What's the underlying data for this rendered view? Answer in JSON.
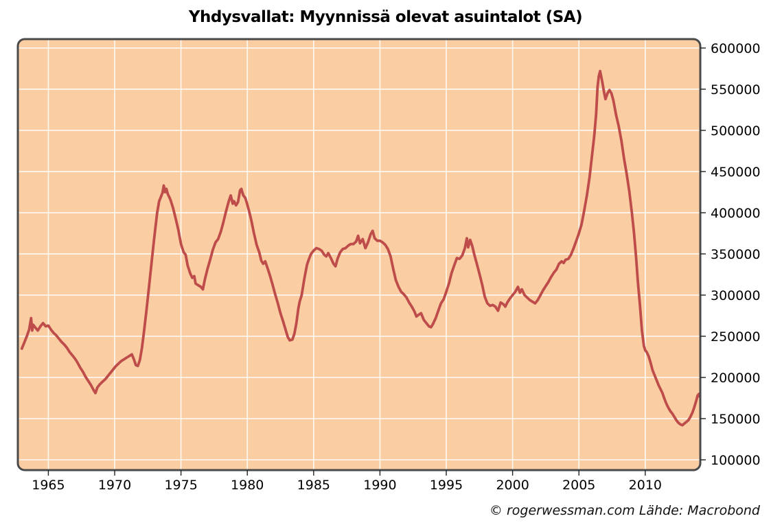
{
  "title": "Yhdysvallat: Myynnissä olevat asuintalot (SA)",
  "attribution": "© rogerwessman.com Lähde: Macrobond",
  "colors": {
    "plot_background": "#FACDA3",
    "line": "#BE4C4A",
    "gridline": "#FDFAF4",
    "frame": "#4A4A4A",
    "tick": "#222222",
    "text": "#000000"
  },
  "chart_data": {
    "type": "line",
    "title": "Yhdysvallat: Myynnissä olevat asuintalot (SA)",
    "xlabel": "",
    "ylabel": "",
    "x_range": [
      1962.7,
      2014.15
    ],
    "y_range": [
      87500,
      610800
    ],
    "grid": true,
    "legend_position": "none",
    "x_ticks": [
      1965,
      1970,
      1975,
      1980,
      1985,
      1990,
      1995,
      2000,
      2005,
      2010
    ],
    "y_ticks": [
      100000,
      150000,
      200000,
      250000,
      300000,
      350000,
      400000,
      450000,
      500000,
      550000,
      600000
    ],
    "series": [
      {
        "name": "Myynnissä olevat asuintalot (SA)",
        "points": [
          [
            1963.0,
            235000
          ],
          [
            1963.2,
            243000
          ],
          [
            1963.4,
            251000
          ],
          [
            1963.55,
            258000
          ],
          [
            1963.7,
            272000
          ],
          [
            1963.78,
            257000
          ],
          [
            1963.85,
            264000
          ],
          [
            1964.0,
            261000
          ],
          [
            1964.2,
            257000
          ],
          [
            1964.4,
            262000
          ],
          [
            1964.6,
            266000
          ],
          [
            1964.8,
            262000
          ],
          [
            1965.0,
            263000
          ],
          [
            1965.2,
            258000
          ],
          [
            1965.4,
            254000
          ],
          [
            1965.6,
            251000
          ],
          [
            1965.8,
            247000
          ],
          [
            1966.0,
            243000
          ],
          [
            1966.2,
            240000
          ],
          [
            1966.4,
            236000
          ],
          [
            1966.6,
            231000
          ],
          [
            1966.8,
            227000
          ],
          [
            1967.0,
            223000
          ],
          [
            1967.2,
            218000
          ],
          [
            1967.4,
            212000
          ],
          [
            1967.6,
            207000
          ],
          [
            1967.8,
            201000
          ],
          [
            1968.0,
            196000
          ],
          [
            1968.2,
            191000
          ],
          [
            1968.4,
            185000
          ],
          [
            1968.55,
            181000
          ],
          [
            1968.7,
            188000
          ],
          [
            1968.9,
            192000
          ],
          [
            1969.1,
            195000
          ],
          [
            1969.3,
            198000
          ],
          [
            1969.5,
            202000
          ],
          [
            1969.7,
            206000
          ],
          [
            1969.9,
            210000
          ],
          [
            1970.1,
            214000
          ],
          [
            1970.3,
            217000
          ],
          [
            1970.5,
            220000
          ],
          [
            1970.7,
            222000
          ],
          [
            1970.9,
            224000
          ],
          [
            1971.1,
            226000
          ],
          [
            1971.3,
            228000
          ],
          [
            1971.45,
            222000
          ],
          [
            1971.6,
            215000
          ],
          [
            1971.75,
            214000
          ],
          [
            1971.9,
            221000
          ],
          [
            1972.05,
            235000
          ],
          [
            1972.2,
            254000
          ],
          [
            1972.4,
            282000
          ],
          [
            1972.6,
            312000
          ],
          [
            1972.8,
            342000
          ],
          [
            1973.0,
            372000
          ],
          [
            1973.2,
            400000
          ],
          [
            1973.35,
            414000
          ],
          [
            1973.5,
            420000
          ],
          [
            1973.6,
            424000
          ],
          [
            1973.7,
            433000
          ],
          [
            1973.8,
            425000
          ],
          [
            1973.9,
            429000
          ],
          [
            1974.0,
            423000
          ],
          [
            1974.2,
            416000
          ],
          [
            1974.4,
            406000
          ],
          [
            1974.6,
            393000
          ],
          [
            1974.8,
            379000
          ],
          [
            1975.0,
            362000
          ],
          [
            1975.2,
            352000
          ],
          [
            1975.35,
            349000
          ],
          [
            1975.5,
            336000
          ],
          [
            1975.7,
            326000
          ],
          [
            1975.85,
            321000
          ],
          [
            1976.0,
            323000
          ],
          [
            1976.1,
            314000
          ],
          [
            1976.3,
            312000
          ],
          [
            1976.5,
            310000
          ],
          [
            1976.65,
            307000
          ],
          [
            1976.8,
            319000
          ],
          [
            1977.0,
            332000
          ],
          [
            1977.2,
            343000
          ],
          [
            1977.4,
            355000
          ],
          [
            1977.6,
            364000
          ],
          [
            1977.8,
            368000
          ],
          [
            1978.0,
            377000
          ],
          [
            1978.2,
            389000
          ],
          [
            1978.4,
            402000
          ],
          [
            1978.6,
            414000
          ],
          [
            1978.75,
            421000
          ],
          [
            1978.9,
            411000
          ],
          [
            1979.0,
            414000
          ],
          [
            1979.15,
            409000
          ],
          [
            1979.3,
            413000
          ],
          [
            1979.45,
            427000
          ],
          [
            1979.55,
            429000
          ],
          [
            1979.7,
            421000
          ],
          [
            1979.85,
            418000
          ],
          [
            1980.0,
            410000
          ],
          [
            1980.15,
            401000
          ],
          [
            1980.3,
            391000
          ],
          [
            1980.5,
            375000
          ],
          [
            1980.7,
            361000
          ],
          [
            1980.9,
            352000
          ],
          [
            1981.05,
            342000
          ],
          [
            1981.2,
            338000
          ],
          [
            1981.35,
            341000
          ],
          [
            1981.5,
            334000
          ],
          [
            1981.7,
            324000
          ],
          [
            1981.9,
            313000
          ],
          [
            1982.1,
            301000
          ],
          [
            1982.3,
            290000
          ],
          [
            1982.5,
            278000
          ],
          [
            1982.7,
            268000
          ],
          [
            1982.9,
            257000
          ],
          [
            1983.05,
            249000
          ],
          [
            1983.2,
            245000
          ],
          [
            1983.4,
            246000
          ],
          [
            1983.55,
            253000
          ],
          [
            1983.7,
            266000
          ],
          [
            1983.85,
            284000
          ],
          [
            1983.95,
            292000
          ],
          [
            1984.1,
            300000
          ],
          [
            1984.3,
            320000
          ],
          [
            1984.5,
            337000
          ],
          [
            1984.65,
            344000
          ],
          [
            1984.8,
            350000
          ],
          [
            1985.0,
            354000
          ],
          [
            1985.2,
            357000
          ],
          [
            1985.4,
            356000
          ],
          [
            1985.6,
            354000
          ],
          [
            1985.8,
            349000
          ],
          [
            1985.95,
            347000
          ],
          [
            1986.1,
            351000
          ],
          [
            1986.3,
            345000
          ],
          [
            1986.5,
            338000
          ],
          [
            1986.65,
            335000
          ],
          [
            1986.8,
            344000
          ],
          [
            1987.0,
            352000
          ],
          [
            1987.2,
            356000
          ],
          [
            1987.4,
            357000
          ],
          [
            1987.6,
            360000
          ],
          [
            1987.8,
            362000
          ],
          [
            1988.0,
            362000
          ],
          [
            1988.2,
            365000
          ],
          [
            1988.35,
            372000
          ],
          [
            1988.5,
            363000
          ],
          [
            1988.7,
            368000
          ],
          [
            1988.9,
            357000
          ],
          [
            1989.1,
            364000
          ],
          [
            1989.3,
            374000
          ],
          [
            1989.45,
            378000
          ],
          [
            1989.6,
            369000
          ],
          [
            1989.8,
            366000
          ],
          [
            1990.0,
            366000
          ],
          [
            1990.2,
            364000
          ],
          [
            1990.4,
            361000
          ],
          [
            1990.6,
            356000
          ],
          [
            1990.8,
            347000
          ],
          [
            1991.0,
            332000
          ],
          [
            1991.2,
            318000
          ],
          [
            1991.4,
            310000
          ],
          [
            1991.6,
            304000
          ],
          [
            1991.8,
            301000
          ],
          [
            1992.0,
            297000
          ],
          [
            1992.2,
            291000
          ],
          [
            1992.4,
            286000
          ],
          [
            1992.6,
            280000
          ],
          [
            1992.75,
            274000
          ],
          [
            1992.9,
            276000
          ],
          [
            1993.1,
            278000
          ],
          [
            1993.3,
            270000
          ],
          [
            1993.5,
            266000
          ],
          [
            1993.7,
            262000
          ],
          [
            1993.85,
            261000
          ],
          [
            1994.0,
            265000
          ],
          [
            1994.2,
            272000
          ],
          [
            1994.4,
            281000
          ],
          [
            1994.6,
            290000
          ],
          [
            1994.8,
            295000
          ],
          [
            1995.0,
            304000
          ],
          [
            1995.2,
            314000
          ],
          [
            1995.4,
            327000
          ],
          [
            1995.6,
            336000
          ],
          [
            1995.8,
            345000
          ],
          [
            1996.0,
            344000
          ],
          [
            1996.2,
            348000
          ],
          [
            1996.4,
            357000
          ],
          [
            1996.55,
            369000
          ],
          [
            1996.65,
            358000
          ],
          [
            1996.8,
            367000
          ],
          [
            1996.95,
            360000
          ],
          [
            1997.1,
            350000
          ],
          [
            1997.3,
            338000
          ],
          [
            1997.5,
            326000
          ],
          [
            1997.7,
            313000
          ],
          [
            1997.9,
            298000
          ],
          [
            1998.1,
            290000
          ],
          [
            1998.3,
            287000
          ],
          [
            1998.5,
            288000
          ],
          [
            1998.7,
            286000
          ],
          [
            1998.9,
            281000
          ],
          [
            1999.1,
            291000
          ],
          [
            1999.3,
            289000
          ],
          [
            1999.45,
            286000
          ],
          [
            1999.6,
            291000
          ],
          [
            1999.8,
            296000
          ],
          [
            2000.0,
            300000
          ],
          [
            2000.2,
            304000
          ],
          [
            2000.4,
            310000
          ],
          [
            2000.55,
            303000
          ],
          [
            2000.7,
            307000
          ],
          [
            2000.9,
            300000
          ],
          [
            2001.1,
            297000
          ],
          [
            2001.3,
            294000
          ],
          [
            2001.5,
            292000
          ],
          [
            2001.7,
            290000
          ],
          [
            2001.9,
            294000
          ],
          [
            2002.1,
            300000
          ],
          [
            2002.3,
            306000
          ],
          [
            2002.5,
            311000
          ],
          [
            2002.7,
            316000
          ],
          [
            2002.9,
            322000
          ],
          [
            2003.1,
            327000
          ],
          [
            2003.3,
            331000
          ],
          [
            2003.5,
            338000
          ],
          [
            2003.7,
            341000
          ],
          [
            2003.85,
            339000
          ],
          [
            2004.0,
            343000
          ],
          [
            2004.2,
            344000
          ],
          [
            2004.4,
            349000
          ],
          [
            2004.6,
            357000
          ],
          [
            2004.8,
            366000
          ],
          [
            2005.0,
            375000
          ],
          [
            2005.2,
            386000
          ],
          [
            2005.4,
            403000
          ],
          [
            2005.6,
            421000
          ],
          [
            2005.8,
            443000
          ],
          [
            2006.0,
            471000
          ],
          [
            2006.15,
            492000
          ],
          [
            2006.3,
            520000
          ],
          [
            2006.4,
            552000
          ],
          [
            2006.5,
            566000
          ],
          [
            2006.6,
            572000
          ],
          [
            2006.75,
            560000
          ],
          [
            2006.9,
            546000
          ],
          [
            2007.0,
            538000
          ],
          [
            2007.15,
            545000
          ],
          [
            2007.3,
            549000
          ],
          [
            2007.45,
            545000
          ],
          [
            2007.6,
            536000
          ],
          [
            2007.8,
            519000
          ],
          [
            2008.0,
            505000
          ],
          [
            2008.2,
            488000
          ],
          [
            2008.4,
            466000
          ],
          [
            2008.6,
            447000
          ],
          [
            2008.8,
            426000
          ],
          [
            2009.0,
            399000
          ],
          [
            2009.15,
            376000
          ],
          [
            2009.3,
            348000
          ],
          [
            2009.45,
            315000
          ],
          [
            2009.6,
            288000
          ],
          [
            2009.75,
            257000
          ],
          [
            2009.9,
            238000
          ],
          [
            2010.0,
            233000
          ],
          [
            2010.1,
            231000
          ],
          [
            2010.25,
            226000
          ],
          [
            2010.4,
            218000
          ],
          [
            2010.55,
            209000
          ],
          [
            2010.7,
            203000
          ],
          [
            2010.85,
            197000
          ],
          [
            2011.0,
            191000
          ],
          [
            2011.15,
            186000
          ],
          [
            2011.3,
            181000
          ],
          [
            2011.45,
            174000
          ],
          [
            2011.6,
            168000
          ],
          [
            2011.75,
            163000
          ],
          [
            2011.9,
            159000
          ],
          [
            2012.05,
            156000
          ],
          [
            2012.2,
            152000
          ],
          [
            2012.35,
            148000
          ],
          [
            2012.5,
            145000
          ],
          [
            2012.65,
            143000
          ],
          [
            2012.8,
            142000
          ],
          [
            2012.95,
            144000
          ],
          [
            2013.1,
            146000
          ],
          [
            2013.25,
            148000
          ],
          [
            2013.4,
            152000
          ],
          [
            2013.55,
            157000
          ],
          [
            2013.7,
            164000
          ],
          [
            2013.85,
            172000
          ],
          [
            2013.95,
            178000
          ],
          [
            2014.05,
            180000
          ],
          [
            2014.1,
            177000
          ]
        ]
      }
    ]
  }
}
